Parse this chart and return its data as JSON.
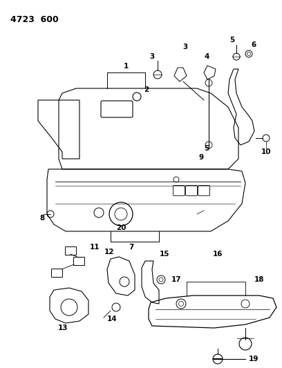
{
  "bg_color": "#ffffff",
  "line_color": "#000000",
  "title": "4723  600",
  "figsize": [
    4.08,
    5.33
  ],
  "dpi": 100
}
